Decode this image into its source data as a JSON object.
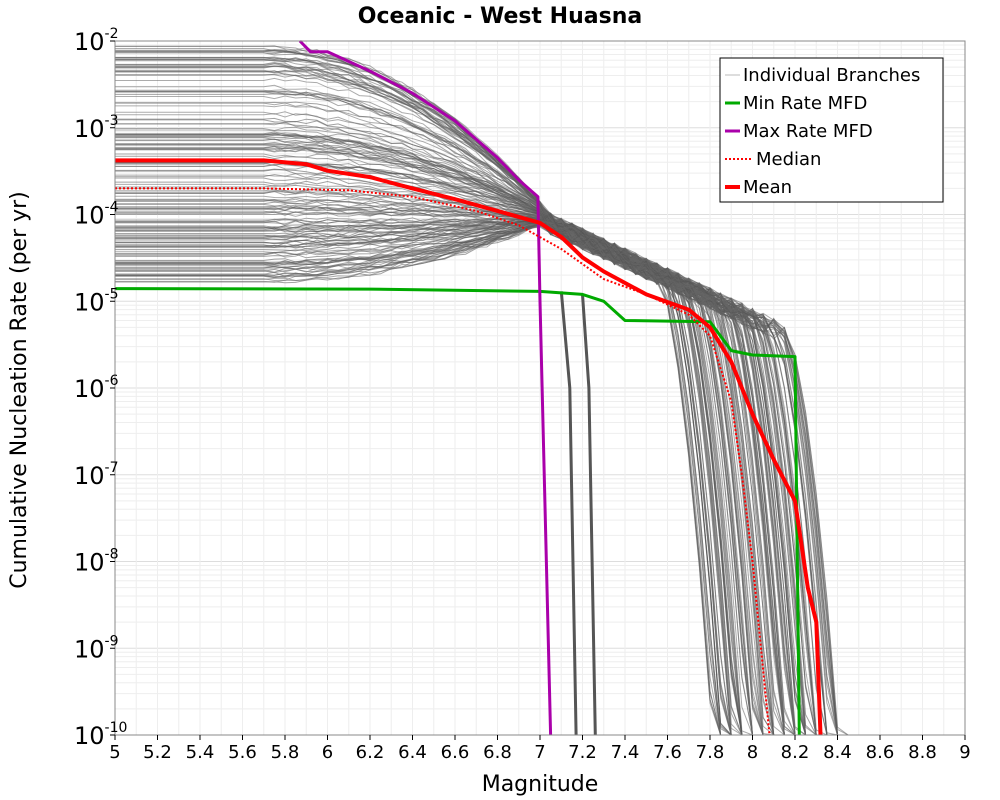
{
  "chart_data": {
    "type": "line",
    "title": "Oceanic - West Huasna",
    "xlabel": "Magnitude",
    "ylabel": "Cumulative Nucleation Rate (per yr)",
    "xlim": [
      5,
      9
    ],
    "ylim": [
      1e-10,
      0.01
    ],
    "y_scale": "log",
    "grid": true,
    "legend_position": "top-right",
    "x_ticks": [
      "5",
      "5.2",
      "5.4",
      "5.6",
      "5.8",
      "6",
      "6.2",
      "6.4",
      "6.6",
      "6.8",
      "7",
      "7.2",
      "7.4",
      "7.6",
      "7.8",
      "8",
      "8.2",
      "8.4",
      "8.6",
      "8.8",
      "9"
    ],
    "y_ticks": [
      {
        "base": "10",
        "exp": "-2"
      },
      {
        "base": "10",
        "exp": "-3"
      },
      {
        "base": "10",
        "exp": "-4"
      },
      {
        "base": "10",
        "exp": "-5"
      },
      {
        "base": "10",
        "exp": "-6"
      },
      {
        "base": "10",
        "exp": "-7"
      },
      {
        "base": "10",
        "exp": "-8"
      },
      {
        "base": "10",
        "exp": "-9"
      },
      {
        "base": "10",
        "exp": "-10"
      }
    ],
    "legend": [
      {
        "label": "Individual Branches",
        "color": "#bbbbbb",
        "style": "thin"
      },
      {
        "label": "Min Rate MFD",
        "color": "#00aa00",
        "style": "solid"
      },
      {
        "label": "Max Rate MFD",
        "color": "#aa00aa",
        "style": "solid"
      },
      {
        "label": "Median",
        "color": "#ff0000",
        "style": "dotted"
      },
      {
        "label": "Mean",
        "color": "#ff0000",
        "style": "thick"
      }
    ],
    "series": [
      {
        "name": "Min Rate MFD",
        "color": "#00aa00",
        "style": "solid",
        "points": [
          [
            5,
            1.4e-05
          ],
          [
            6.2,
            1.38e-05
          ],
          [
            7.0,
            1.3e-05
          ],
          [
            7.2,
            1.2e-05
          ],
          [
            7.3,
            1e-05
          ],
          [
            7.4,
            6e-06
          ],
          [
            7.8,
            5.8e-06
          ],
          [
            7.9,
            2.7e-06
          ],
          [
            8.0,
            2.4e-06
          ],
          [
            8.2,
            2.3e-06
          ],
          [
            8.22,
            1e-10
          ]
        ]
      },
      {
        "name": "Max Rate MFD",
        "color": "#aa00aa",
        "style": "solid",
        "points": [
          [
            5.87,
            0.01
          ],
          [
            5.92,
            0.0075
          ],
          [
            6.0,
            0.0075
          ],
          [
            6.2,
            0.0045
          ],
          [
            6.4,
            0.0025
          ],
          [
            6.6,
            0.0012
          ],
          [
            6.8,
            0.00045
          ],
          [
            6.9,
            0.00025
          ],
          [
            6.99,
            0.00016
          ],
          [
            7.0,
            1e-05
          ],
          [
            7.05,
            1e-10
          ]
        ]
      },
      {
        "name": "Median",
        "color": "#ff0000",
        "style": "dotted",
        "points": [
          [
            5,
            0.0002
          ],
          [
            5.7,
            0.0002
          ],
          [
            6.1,
            0.00019
          ],
          [
            6.4,
            0.00016
          ],
          [
            6.7,
            0.00011
          ],
          [
            6.9,
            7.5e-05
          ],
          [
            7.1,
            4e-05
          ],
          [
            7.3,
            1.8e-05
          ],
          [
            7.5,
            1.2e-05
          ],
          [
            7.7,
            7e-06
          ],
          [
            7.8,
            4e-06
          ],
          [
            7.9,
            7e-07
          ],
          [
            7.95,
            1e-07
          ],
          [
            8.0,
            1e-08
          ],
          [
            8.08,
            1e-10
          ]
        ]
      },
      {
        "name": "Mean",
        "color": "#ff0000",
        "style": "thick",
        "points": [
          [
            5,
            0.00042
          ],
          [
            5.7,
            0.00042
          ],
          [
            5.9,
            0.00038
          ],
          [
            6.0,
            0.00032
          ],
          [
            6.2,
            0.00027
          ],
          [
            6.4,
            0.0002
          ],
          [
            6.6,
            0.00015
          ],
          [
            6.8,
            0.00011
          ],
          [
            7.0,
            8e-05
          ],
          [
            7.1,
            5.5e-05
          ],
          [
            7.2,
            3.2e-05
          ],
          [
            7.3,
            2.2e-05
          ],
          [
            7.5,
            1.2e-05
          ],
          [
            7.7,
            8e-06
          ],
          [
            7.8,
            5e-06
          ],
          [
            7.9,
            2e-06
          ],
          [
            8.0,
            5e-07
          ],
          [
            8.1,
            1.5e-07
          ],
          [
            8.2,
            5e-08
          ],
          [
            8.26,
            5e-09
          ],
          [
            8.3,
            2e-09
          ],
          [
            8.32,
            1e-10
          ]
        ]
      },
      {
        "name": "",
        "color": "#555555",
        "style": "thick-dark",
        "points": [
          [
            7.1,
            1.3e-05
          ],
          [
            7.14,
            1e-06
          ],
          [
            7.17,
            1e-10
          ]
        ]
      },
      {
        "name": "",
        "color": "#555555",
        "style": "thick-dark",
        "points": [
          [
            7.2,
            1.2e-05
          ],
          [
            7.23,
            1e-06
          ],
          [
            7.26,
            1e-10
          ]
        ]
      }
    ]
  }
}
